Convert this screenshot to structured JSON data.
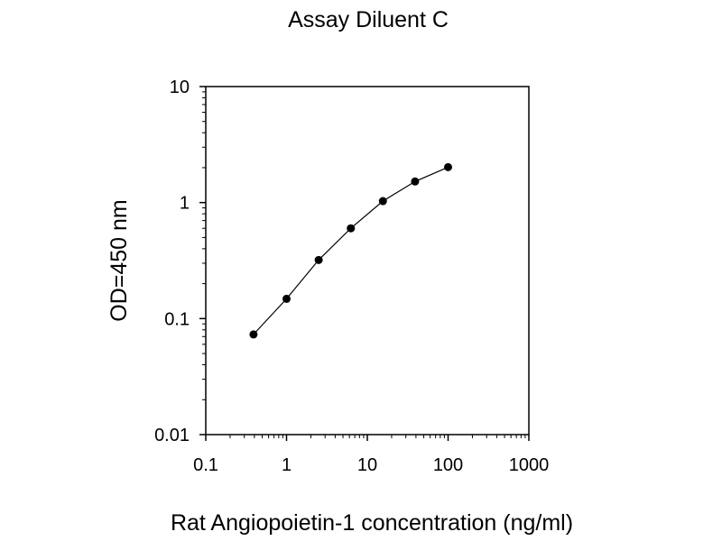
{
  "chart_data": {
    "type": "line",
    "title": "Assay Diluent C",
    "xlabel": "Rat Angiopoietin-1 concentration (ng/ml)",
    "ylabel": "OD=450 nm",
    "x_scale": "log",
    "y_scale": "log",
    "xlim": [
      0.1,
      1000
    ],
    "ylim": [
      0.01,
      10
    ],
    "x_ticks": [
      0.1,
      1,
      10,
      100,
      1000
    ],
    "x_tick_labels": [
      "0.1",
      "1",
      "10",
      "100",
      "1000"
    ],
    "y_ticks": [
      0.01,
      0.1,
      1,
      10
    ],
    "y_tick_labels": [
      "0.01",
      "0.1",
      "1",
      "10"
    ],
    "grid": false,
    "legend": "none",
    "series": [
      {
        "color": "#000000",
        "marker": "circle",
        "points": [
          {
            "x": 0.39,
            "y": 0.073
          },
          {
            "x": 1.0,
            "y": 0.148
          },
          {
            "x": 2.5,
            "y": 0.32
          },
          {
            "x": 6.25,
            "y": 0.6
          },
          {
            "x": 15.6,
            "y": 1.03
          },
          {
            "x": 39,
            "y": 1.52
          },
          {
            "x": 100,
            "y": 2.02
          }
        ]
      }
    ]
  }
}
